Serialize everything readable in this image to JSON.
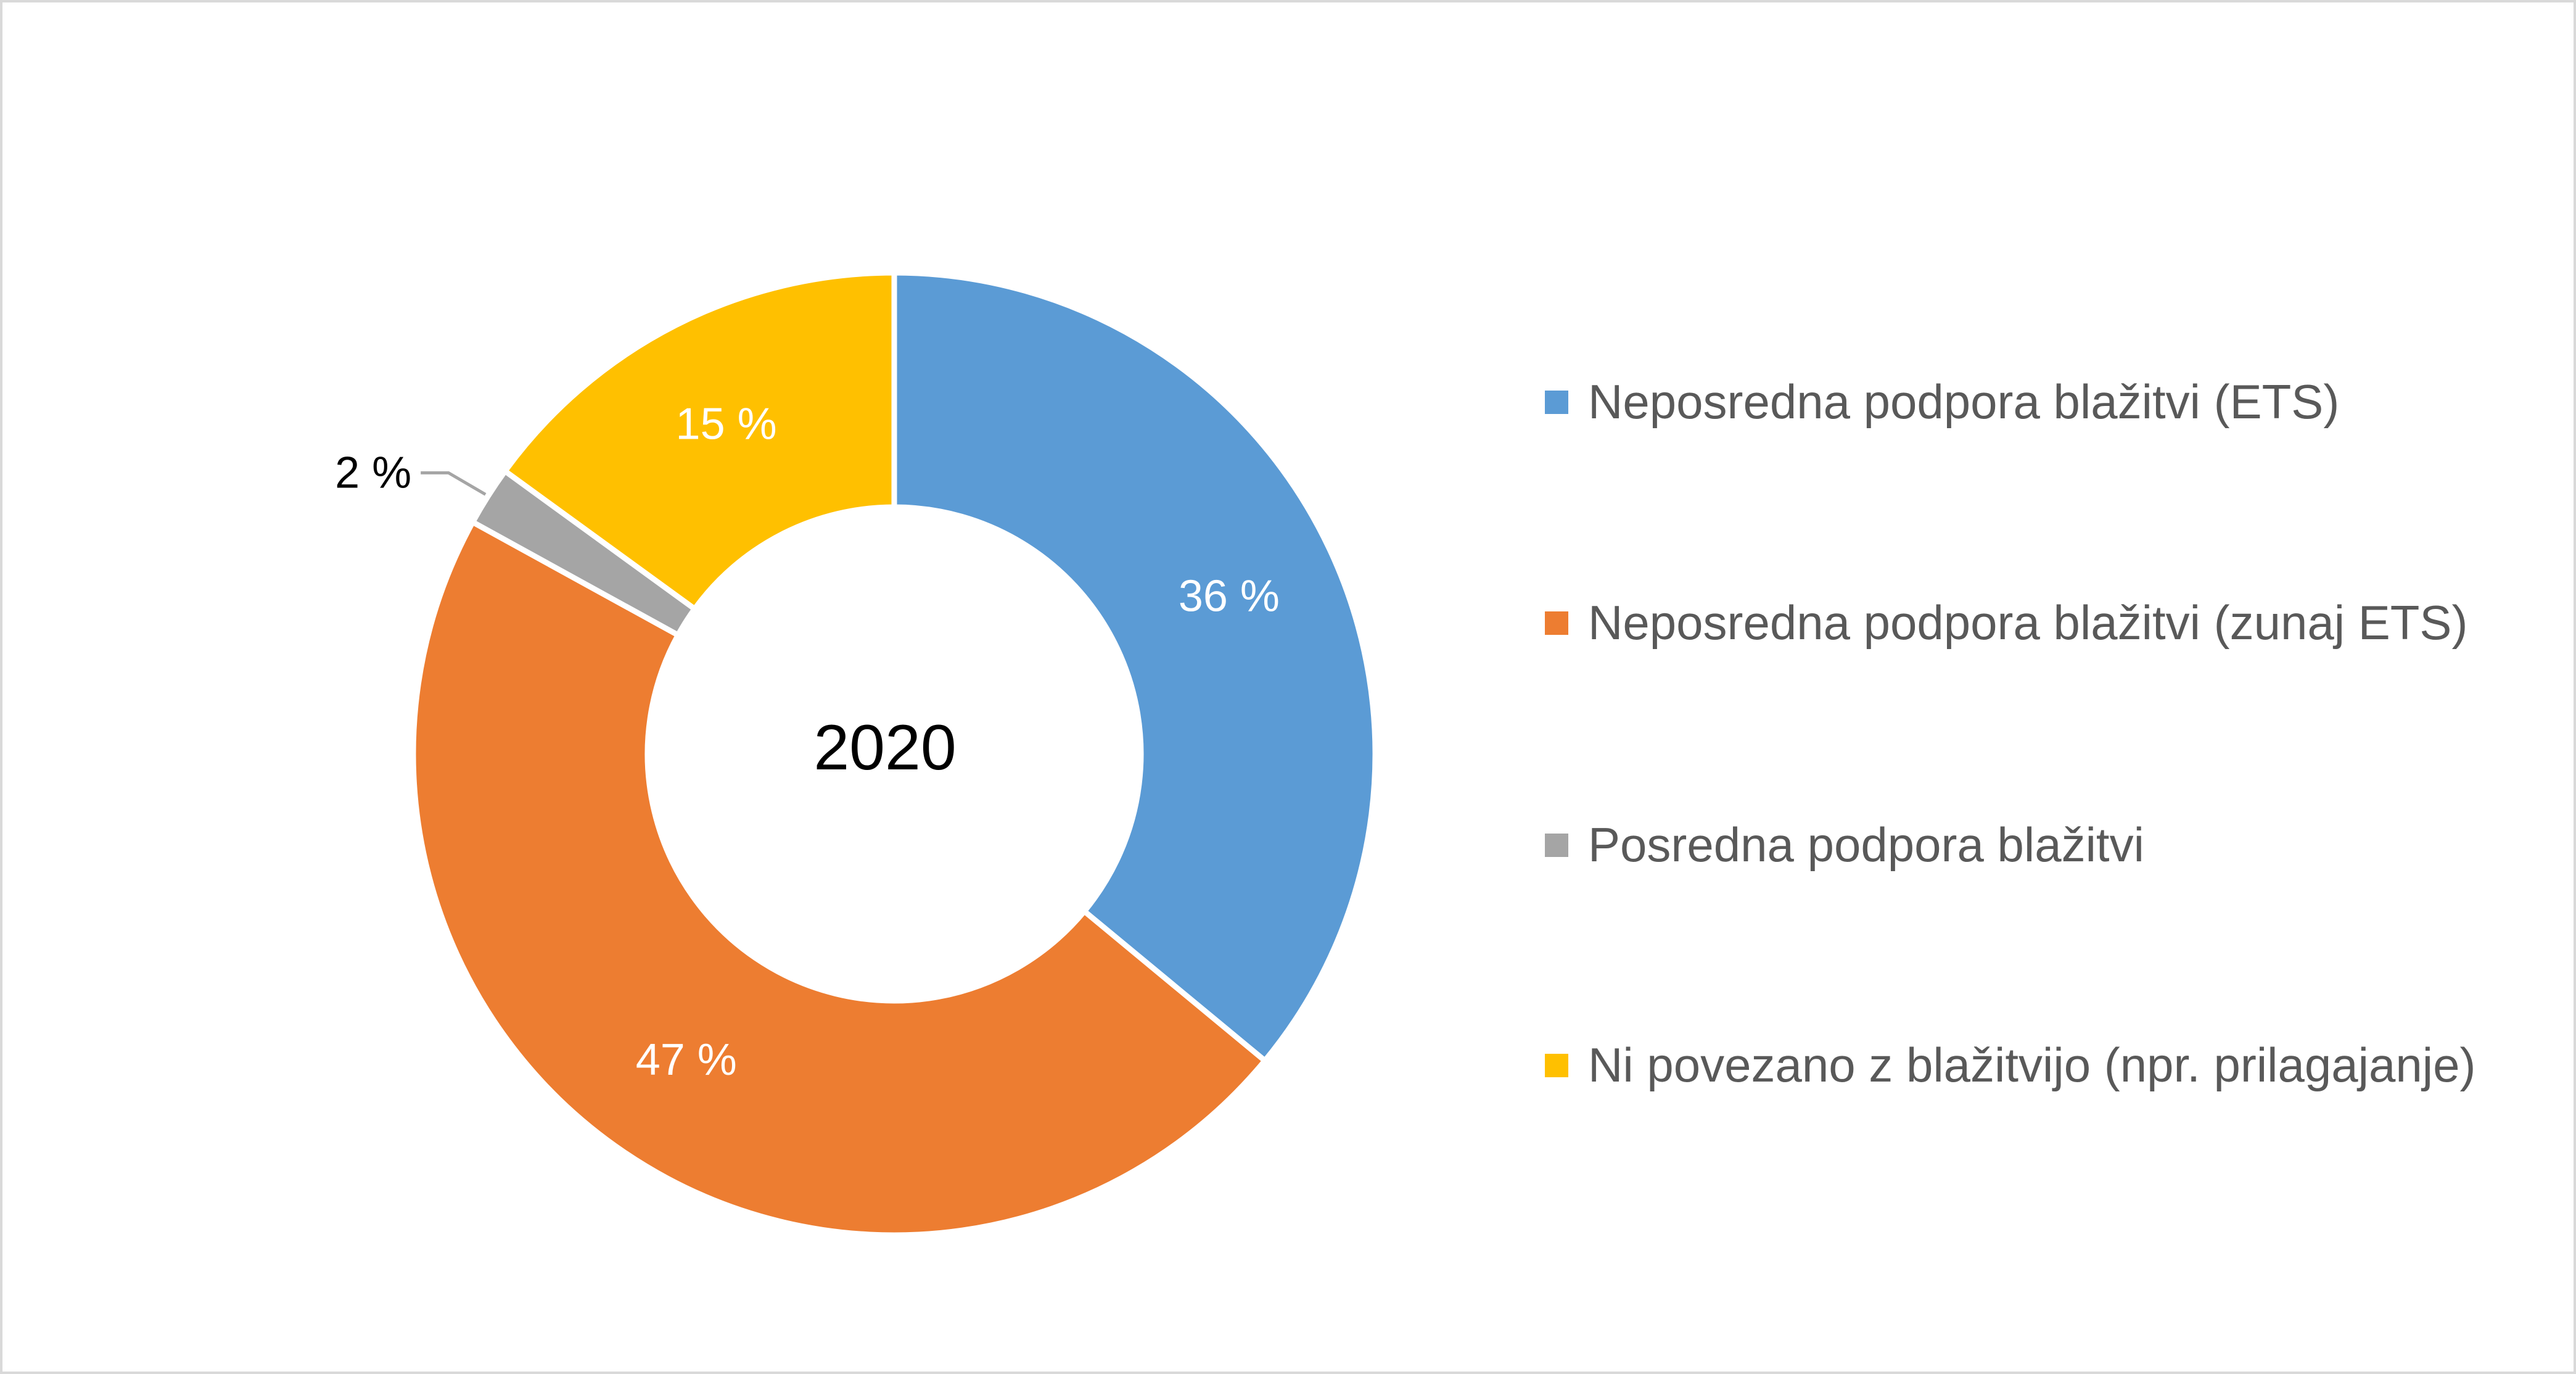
{
  "chart_data": {
    "type": "pie",
    "variant": "donut",
    "center_label": "2020",
    "categories": [
      "Neposredna podpora blažitvi (ETS)",
      "Neposredna podpora blažitvi (zunaj ETS)",
      "Posredna podpora blažitvi",
      "Ni povezano z blažitvijo (npr. prilagajanje)"
    ],
    "values": [
      36,
      47,
      2,
      15
    ],
    "value_labels": [
      "36 %",
      "47 %",
      "2 %",
      "15 %"
    ],
    "colors": [
      "#5b9bd5",
      "#ed7d31",
      "#a5a5a5",
      "#ffc000"
    ],
    "label_colors": [
      "#ffffff",
      "#ffffff",
      "#000000",
      "#ffffff"
    ],
    "legend_position": "right"
  }
}
